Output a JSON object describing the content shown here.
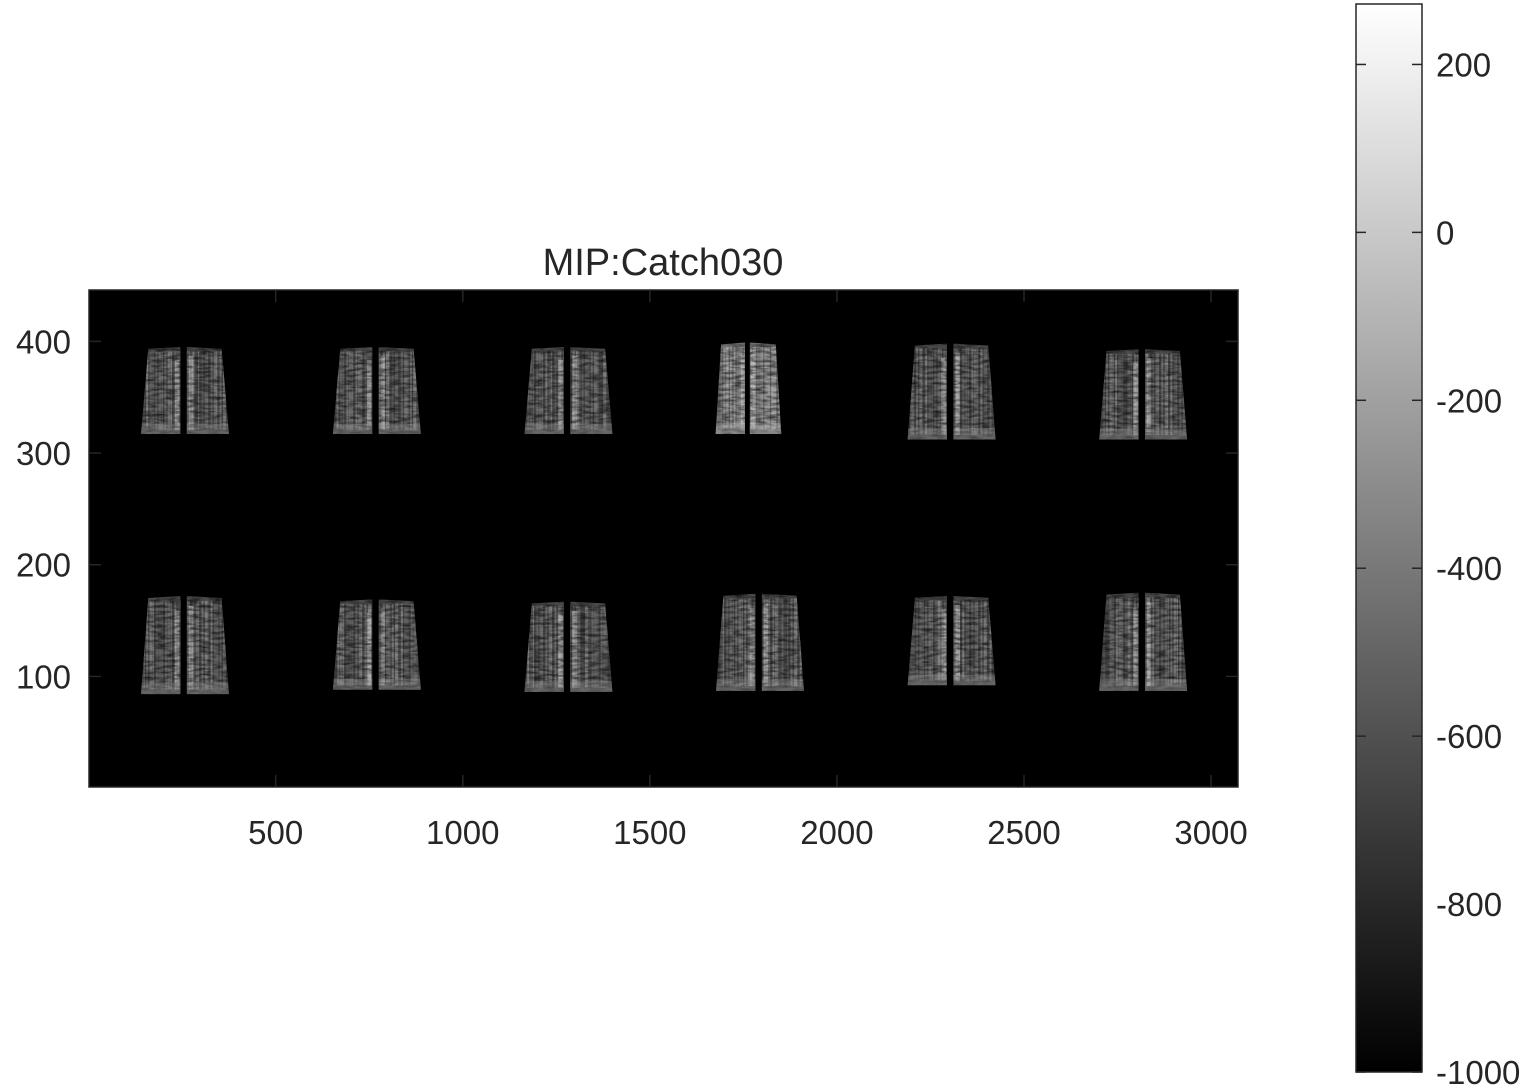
{
  "chart_data": {
    "type": "heatmap",
    "title": "MIP:Catch030",
    "xlabel": "",
    "ylabel": "",
    "xlim": [
      1,
      3072
    ],
    "ylim": [
      1,
      446
    ],
    "x_ticks": [
      500,
      1000,
      1500,
      2000,
      2500,
      3000
    ],
    "y_ticks": [
      100,
      200,
      300,
      400
    ],
    "x_tick_labels": [
      "500",
      "1000",
      "1500",
      "2000",
      "2500",
      "3000"
    ],
    "y_tick_labels": [
      "100",
      "200",
      "300",
      "400"
    ],
    "background_value": -1000,
    "colormap": "gray",
    "grid": false,
    "panels": [
      {
        "x0": 135,
        "x1": 380,
        "y0": 317,
        "y1": 395,
        "style": "normal"
      },
      {
        "x0": 648,
        "x1": 893,
        "y0": 317,
        "y1": 395,
        "style": "normal"
      },
      {
        "x0": 1160,
        "x1": 1405,
        "y0": 317,
        "y1": 395,
        "style": "normal"
      },
      {
        "x0": 1672,
        "x1": 1855,
        "y0": 317,
        "y1": 399,
        "style": "bright"
      },
      {
        "x0": 2184,
        "x1": 2429,
        "y0": 312,
        "y1": 398,
        "style": "normal"
      },
      {
        "x0": 2696,
        "x1": 2941,
        "y0": 312,
        "y1": 393,
        "style": "normal"
      },
      {
        "x0": 135,
        "x1": 380,
        "y0": 84,
        "y1": 172,
        "style": "normal"
      },
      {
        "x0": 648,
        "x1": 893,
        "y0": 88,
        "y1": 169,
        "style": "normal"
      },
      {
        "x0": 1160,
        "x1": 1405,
        "y0": 86,
        "y1": 167,
        "style": "normal"
      },
      {
        "x0": 1672,
        "x1": 1917,
        "y0": 87,
        "y1": 174,
        "style": "normal"
      },
      {
        "x0": 2184,
        "x1": 2429,
        "y0": 92,
        "y1": 172,
        "style": "normal"
      },
      {
        "x0": 2696,
        "x1": 2941,
        "y0": 87,
        "y1": 175,
        "style": "normal"
      }
    ],
    "colorbar": {
      "clim": [
        -1000,
        272
      ],
      "ticks": [
        200,
        0,
        -200,
        -400,
        -600,
        -800,
        -1000
      ],
      "tick_labels": [
        "200",
        "0",
        "-200",
        "-400",
        "-600",
        "-800",
        "-1000"
      ]
    }
  }
}
